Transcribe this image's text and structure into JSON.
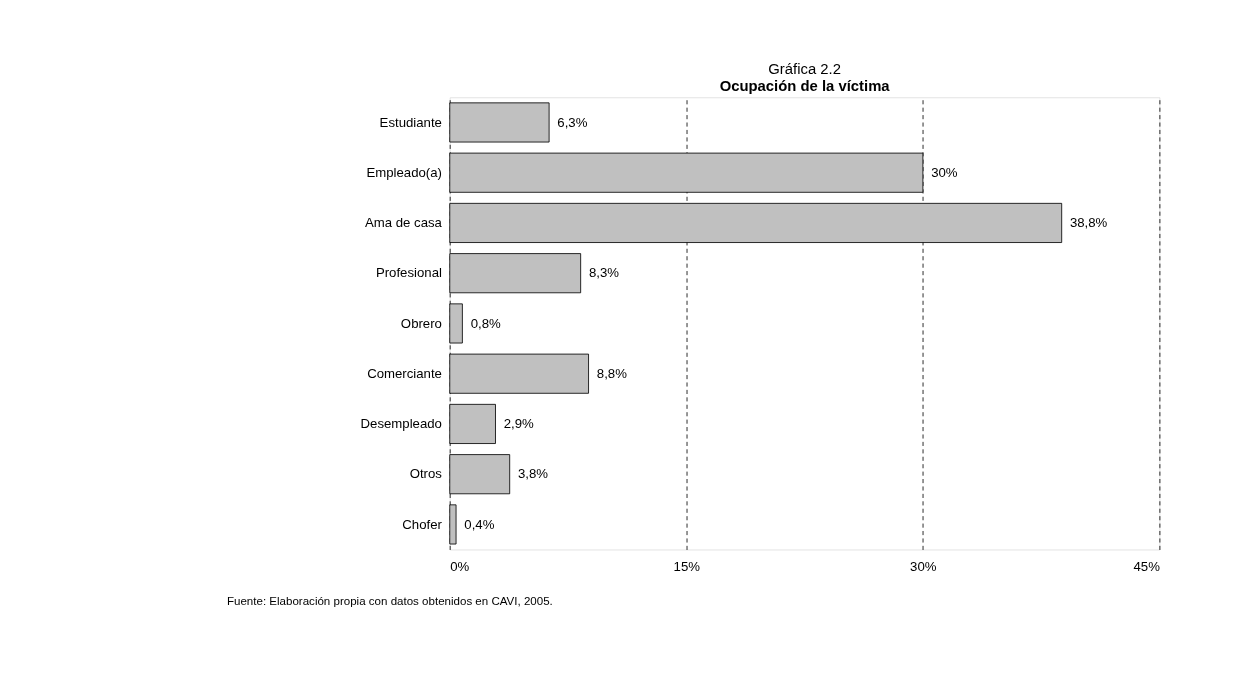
{
  "chart_data": {
    "type": "bar",
    "orientation": "horizontal",
    "title": "Gráfica 2.2",
    "subtitle": "Ocupación de la víctima",
    "categories": [
      "Estudiante",
      "Empleado(a)",
      "Ama de casa",
      "Profesional",
      "Obrero",
      "Comerciante",
      "Desempleado",
      "Otros",
      "Chofer"
    ],
    "values": [
      6.3,
      30,
      38.8,
      8.3,
      0.8,
      8.8,
      2.9,
      3.8,
      0.4
    ],
    "value_labels": [
      "6,3%",
      "30%",
      "38,8%",
      "8,3%",
      "0,8%",
      "8,8%",
      "2,9%",
      "3,8%",
      "0,4%"
    ],
    "color": "#c0c0c0",
    "xlim": [
      0,
      45
    ],
    "xticks": [
      {
        "value": 0,
        "label": "0%"
      },
      {
        "value": 15,
        "label": "15%"
      },
      {
        "value": 30,
        "label": "30%"
      },
      {
        "value": 45,
        "label": "45%"
      }
    ],
    "grid": "x",
    "line_style": "dashed",
    "annotations": [
      "Fuente: Elaboración propia con datos obtenidos en CAVI, 2005."
    ]
  }
}
